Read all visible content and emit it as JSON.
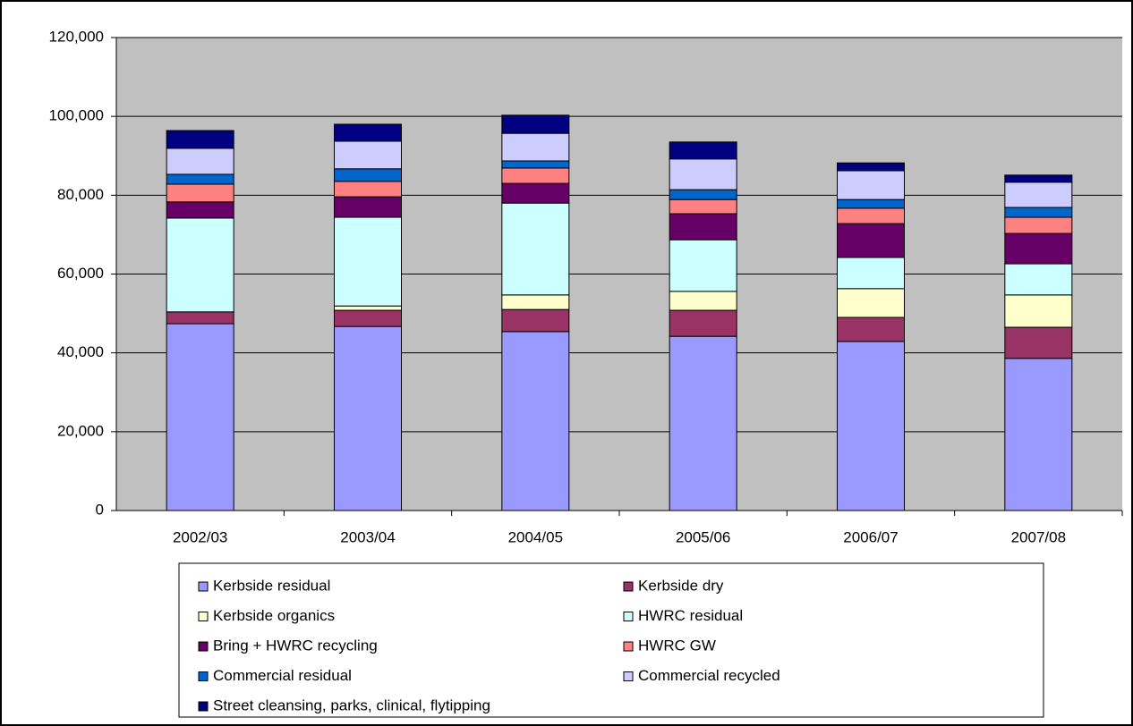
{
  "chart_data": {
    "type": "stacked-bar",
    "categories": [
      "2002/03",
      "2003/04",
      "2004/05",
      "2005/06",
      "2006/07",
      "2007/08"
    ],
    "series": [
      {
        "name": "Kerbside residual",
        "color": "#9999ff",
        "values": [
          47400,
          46700,
          45400,
          44200,
          42900,
          38600
        ]
      },
      {
        "name": "Kerbside dry",
        "color": "#993366",
        "values": [
          3000,
          4100,
          5600,
          6600,
          6100,
          7900
        ]
      },
      {
        "name": "Kerbside organics",
        "color": "#ffffcc",
        "values": [
          0,
          1100,
          3700,
          4800,
          7300,
          8200
        ]
      },
      {
        "name": "HWRC residual",
        "color": "#ccffff",
        "values": [
          23800,
          22500,
          23300,
          13100,
          7900,
          7900
        ]
      },
      {
        "name": "Bring + HWRC recycling",
        "color": "#660066",
        "values": [
          4100,
          5200,
          5000,
          6600,
          8600,
          7700
        ]
      },
      {
        "name": "HWRC GW",
        "color": "#ff8080",
        "values": [
          4500,
          3900,
          3900,
          3600,
          3900,
          4100
        ]
      },
      {
        "name": "Commercial residual",
        "color": "#0066cc",
        "values": [
          2500,
          3200,
          1800,
          2500,
          2200,
          2500
        ]
      },
      {
        "name": "Commercial recycled",
        "color": "#ccccff",
        "values": [
          6600,
          7000,
          7000,
          7800,
          7300,
          6400
        ]
      },
      {
        "name": "Street cleansing, parks, clinical, flytipping",
        "color": "#000080",
        "values": [
          4500,
          4300,
          4600,
          4300,
          2000,
          1800
        ]
      }
    ],
    "ylim": [
      0,
      120000
    ],
    "yticks": [
      0,
      {
        "value": 20000,
        "label": "20,000"
      },
      {
        "value": 40000,
        "label": "40,000"
      },
      {
        "value": 60000,
        "label": "60,000"
      },
      {
        "value": 80000,
        "label": "80,000"
      },
      {
        "value": 100000,
        "label": "100,000"
      },
      {
        "value": 120000,
        "label": "120,000"
      }
    ],
    "grid": true,
    "plot_background": "#c0c0c0"
  }
}
